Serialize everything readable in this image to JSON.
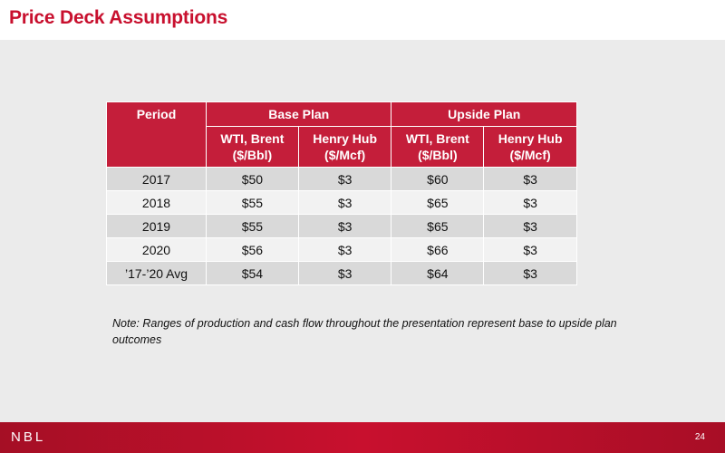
{
  "title": "Price Deck Assumptions",
  "table": {
    "header_top": {
      "period": "Period",
      "base_plan": "Base Plan",
      "upside_plan": "Upside Plan"
    },
    "header_sub": {
      "base_wti": [
        "WTI, Brent",
        "($/Bbl)"
      ],
      "base_hh": [
        "Henry Hub",
        "($/Mcf)"
      ],
      "upside_wti": [
        "WTI, Brent",
        "($/Bbl)"
      ],
      "upside_hh": [
        "Henry Hub",
        "($/Mcf)"
      ]
    },
    "rows": [
      [
        "2017",
        "$50",
        "$3",
        "$60",
        "$3"
      ],
      [
        "2018",
        "$55",
        "$3",
        "$65",
        "$3"
      ],
      [
        "2019",
        "$55",
        "$3",
        "$65",
        "$3"
      ],
      [
        "2020",
        "$56",
        "$3",
        "$66",
        "$3"
      ],
      [
        "’17-’20 Avg",
        "$54",
        "$3",
        "$64",
        "$3"
      ]
    ]
  },
  "note": "Note:  Ranges of production and cash flow throughout the presentation represent base to upside plan outcomes",
  "footer": {
    "logo": "NBL",
    "page_number": "24"
  },
  "colors": {
    "brand_red": "#c8102e",
    "header_red": "#c41e3a",
    "row_dark": "#d9d9d9",
    "row_light": "#f2f2f2"
  }
}
